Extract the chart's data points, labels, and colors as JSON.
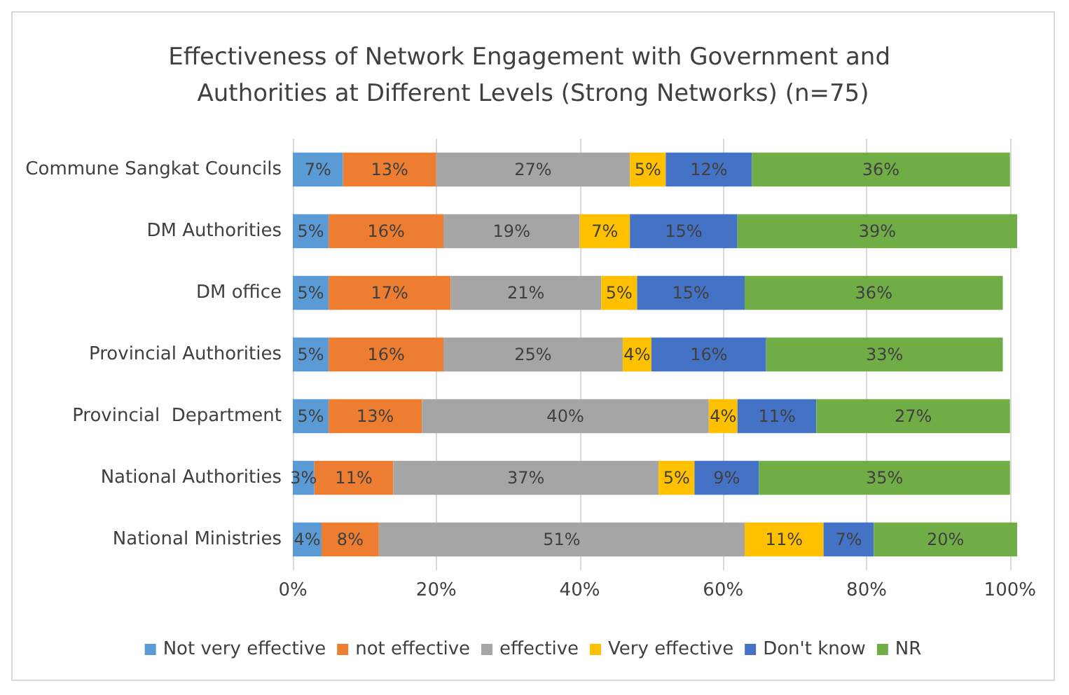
{
  "chart_data": {
    "type": "bar",
    "orientation": "horizontal",
    "stacked": true,
    "title": "Effectiveness of Network Engagement with Government and Authorities at Different Levels (Strong Networks) (n=75)",
    "categories": [
      "Commune Sangkat Councils",
      "DM Authorities",
      "DM office",
      "Provincial Authorities",
      "Provincial  Department",
      "National Authorities",
      "National Ministries"
    ],
    "series": [
      {
        "name": "Not very effective",
        "color": "#5b9bd5",
        "values": [
          7,
          5,
          5,
          5,
          5,
          3,
          4
        ],
        "value_labels": [
          "7%",
          "5%",
          "5%",
          "5%",
          "5%",
          "3%",
          "4%"
        ]
      },
      {
        "name": "not effective",
        "color": "#ed7d31",
        "values": [
          13,
          16,
          17,
          16,
          13,
          11,
          8
        ],
        "value_labels": [
          "13%",
          "16%",
          "17%",
          "16%",
          "13%",
          "11%",
          "8%"
        ]
      },
      {
        "name": "effective",
        "color": "#a5a5a5",
        "values": [
          27,
          19,
          21,
          25,
          40,
          37,
          51
        ],
        "value_labels": [
          "27%",
          "19%",
          "21%",
          "25%",
          "40%",
          "37%",
          "51%"
        ]
      },
      {
        "name": "Very effective",
        "color": "#ffc000",
        "values": [
          5,
          7,
          5,
          4,
          4,
          5,
          11
        ],
        "value_labels": [
          "5%",
          "7%",
          "5%",
          "4%",
          "4%",
          "5%",
          "11%"
        ]
      },
      {
        "name": "Don't know",
        "color": "#4472c4",
        "values": [
          12,
          15,
          15,
          16,
          11,
          9,
          7
        ],
        "value_labels": [
          "12%",
          "15%",
          "15%",
          "16%",
          "11%",
          "9%",
          "7%"
        ]
      },
      {
        "name": "NR",
        "color": "#70ad47",
        "values": [
          36,
          39,
          36,
          33,
          27,
          35,
          20
        ],
        "value_labels": [
          "36%",
          "39%",
          "36%",
          "33%",
          "27%",
          "35%",
          "20%"
        ]
      }
    ],
    "xlim": [
      0,
      101
    ],
    "xticks": [
      {
        "value": 0,
        "label": "0%"
      },
      {
        "value": 20,
        "label": "20%"
      },
      {
        "value": 40,
        "label": "40%"
      },
      {
        "value": 60,
        "label": "60%"
      },
      {
        "value": 80,
        "label": "80%"
      },
      {
        "value": 100,
        "label": "100%"
      }
    ],
    "grid": "x",
    "legend": "bottom"
  }
}
